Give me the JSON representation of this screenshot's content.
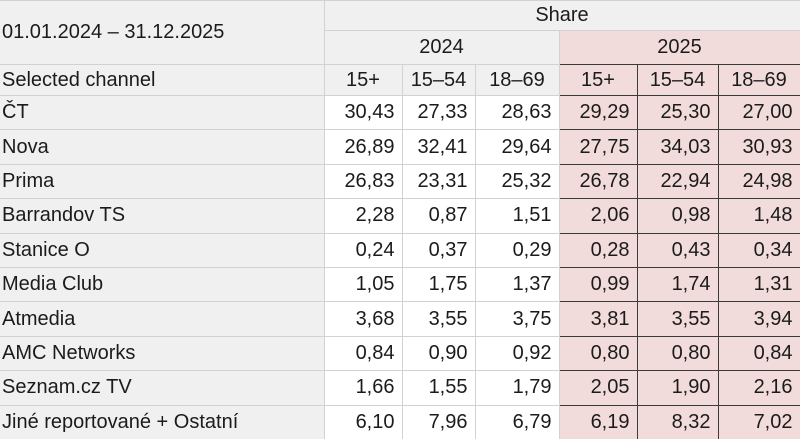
{
  "header": {
    "date_range": "01.01.2024 – 31.12.2025",
    "share_label": "Share",
    "selected_channel_label": "Selected channel",
    "years": [
      {
        "year": "2024",
        "demographics": [
          "15+",
          "15–54",
          "18–69"
        ]
      },
      {
        "year": "2025",
        "demographics": [
          "15+",
          "15–54",
          "18–69"
        ]
      }
    ]
  },
  "rows": [
    {
      "channel": "ČT",
      "y2024": [
        "30,43",
        "27,33",
        "28,63"
      ],
      "y2025": [
        "29,29",
        "25,30",
        "27,00"
      ]
    },
    {
      "channel": "Nova",
      "y2024": [
        "26,89",
        "32,41",
        "29,64"
      ],
      "y2025": [
        "27,75",
        "34,03",
        "30,93"
      ]
    },
    {
      "channel": "Prima",
      "y2024": [
        "26,83",
        "23,31",
        "25,32"
      ],
      "y2025": [
        "26,78",
        "22,94",
        "24,98"
      ]
    },
    {
      "channel": "Barrandov TS",
      "y2024": [
        "2,28",
        "0,87",
        "1,51"
      ],
      "y2025": [
        "2,06",
        "0,98",
        "1,48"
      ]
    },
    {
      "channel": "Stanice O",
      "y2024": [
        "0,24",
        "0,37",
        "0,29"
      ],
      "y2025": [
        "0,28",
        "0,43",
        "0,34"
      ]
    },
    {
      "channel": "Media Club",
      "y2024": [
        "1,05",
        "1,75",
        "1,37"
      ],
      "y2025": [
        "0,99",
        "1,74",
        "1,31"
      ]
    },
    {
      "channel": "Atmedia",
      "y2024": [
        "3,68",
        "3,55",
        "3,75"
      ],
      "y2025": [
        "3,81",
        "3,55",
        "3,94"
      ]
    },
    {
      "channel": "AMC Networks",
      "y2024": [
        "0,84",
        "0,90",
        "0,92"
      ],
      "y2025": [
        "0,80",
        "0,80",
        "0,84"
      ]
    },
    {
      "channel": "Seznam.cz TV",
      "y2024": [
        "1,66",
        "1,55",
        "1,79"
      ],
      "y2025": [
        "2,05",
        "1,90",
        "2,16"
      ]
    },
    {
      "channel": "Jiné reportované + Ostatní",
      "y2024": [
        "6,10",
        "7,96",
        "6,79"
      ],
      "y2025": [
        "6,19",
        "8,32",
        "7,02"
      ]
    }
  ],
  "colors": {
    "header_bg": "#f0f0f0",
    "cell_bg": "#ffffff",
    "highlight_bg": "#f2dcdb",
    "grid_border": "#d2d2d2",
    "highlight_border": "#3a3a3a",
    "text": "#1b1b1b"
  },
  "chart_data": {
    "type": "table",
    "title": "Share",
    "period": "01.01.2024 – 31.12.2025",
    "row_label": "Selected channel",
    "column_groups": [
      "2024",
      "2025"
    ],
    "columns": [
      "2024 15+",
      "2024 15–54",
      "2024 18–69",
      "2025 15+",
      "2025 15–54",
      "2025 18–69"
    ],
    "rows": [
      {
        "channel": "ČT",
        "values": [
          30.43,
          27.33,
          28.63,
          29.29,
          25.3,
          27.0
        ]
      },
      {
        "channel": "Nova",
        "values": [
          26.89,
          32.41,
          29.64,
          27.75,
          34.03,
          30.93
        ]
      },
      {
        "channel": "Prima",
        "values": [
          26.83,
          23.31,
          25.32,
          26.78,
          22.94,
          24.98
        ]
      },
      {
        "channel": "Barrandov TS",
        "values": [
          2.28,
          0.87,
          1.51,
          2.06,
          0.98,
          1.48
        ]
      },
      {
        "channel": "Stanice O",
        "values": [
          0.24,
          0.37,
          0.29,
          0.28,
          0.43,
          0.34
        ]
      },
      {
        "channel": "Media Club",
        "values": [
          1.05,
          1.75,
          1.37,
          0.99,
          1.74,
          1.31
        ]
      },
      {
        "channel": "Atmedia",
        "values": [
          3.68,
          3.55,
          3.75,
          3.81,
          3.55,
          3.94
        ]
      },
      {
        "channel": "AMC Networks",
        "values": [
          0.84,
          0.9,
          0.92,
          0.8,
          0.8,
          0.84
        ]
      },
      {
        "channel": "Seznam.cz TV",
        "values": [
          1.66,
          1.55,
          1.79,
          2.05,
          1.9,
          2.16
        ]
      },
      {
        "channel": "Jiné reportované + Ostatní",
        "values": [
          6.1,
          7.96,
          6.79,
          6.19,
          8.32,
          7.02
        ]
      }
    ]
  }
}
